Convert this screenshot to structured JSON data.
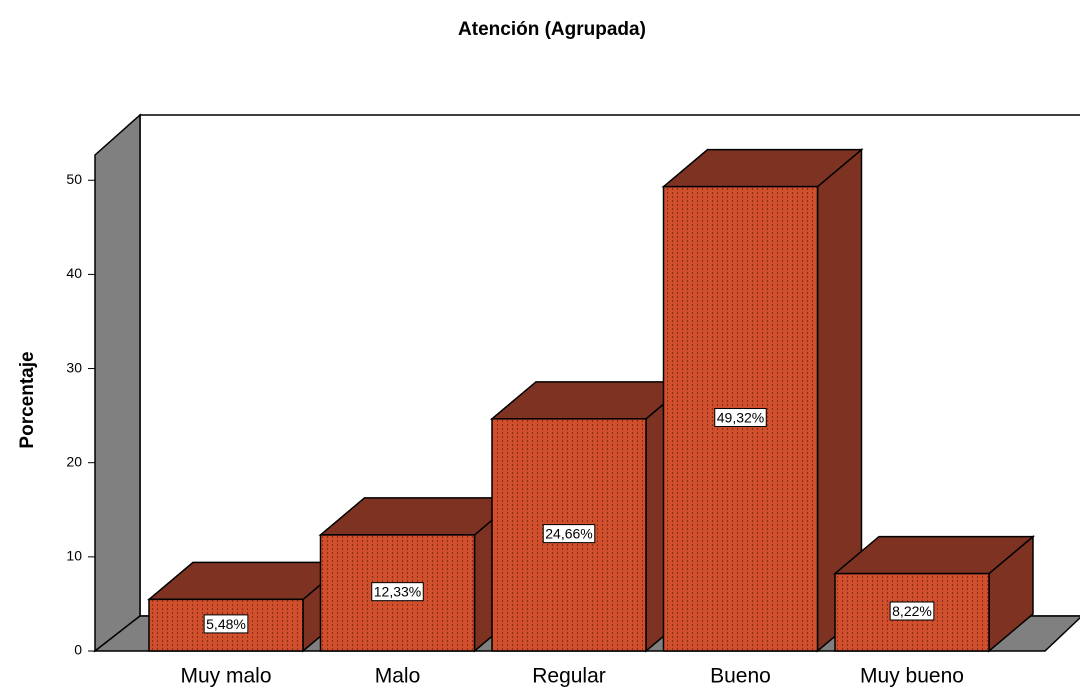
{
  "chart_data": {
    "type": "bar",
    "title": "Atención (Agrupada)",
    "y_label": "Porcentaje",
    "categories": [
      "Muy malo",
      "Malo",
      "Regular",
      "Bueno",
      "Muy bueno"
    ],
    "values": [
      5.48,
      12.33,
      24.66,
      49.32,
      8.22
    ],
    "value_labels": [
      "5,48%",
      "12,33%",
      "24,66%",
      "49,32%",
      "8,22%"
    ],
    "color": "#d0502e",
    "ylim": [
      0,
      53
    ],
    "yticks": [
      0,
      10,
      20,
      30,
      40,
      50
    ]
  }
}
